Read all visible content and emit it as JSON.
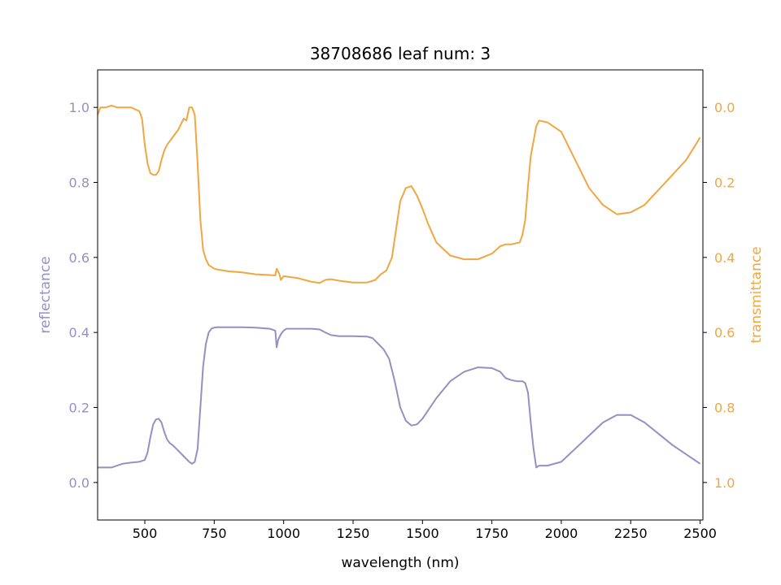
{
  "chart_data": {
    "type": "line",
    "title": "38708686 leaf num: 3",
    "xlabel": "wavelength (nm)",
    "ylabel_left": "reflectance",
    "ylabel_right": "transmittance",
    "xlim": [
      330,
      2510
    ],
    "ylim_left": [
      -0.1,
      1.1
    ],
    "ylim_right": [
      1.1,
      -0.1
    ],
    "x_ticks": [
      500,
      750,
      1000,
      1250,
      1500,
      1750,
      2000,
      2250,
      2500
    ],
    "y_ticks_left": [
      0.0,
      0.2,
      0.4,
      0.6,
      0.8,
      1.0
    ],
    "y_ticks_right": [
      0.0,
      0.2,
      0.4,
      0.6,
      0.8,
      1.0
    ],
    "grid": false,
    "colors": {
      "reflectance": "#9590c2",
      "transmittance": "#f0a742",
      "axis": "#000000"
    },
    "series": [
      {
        "name": "reflectance",
        "axis": "left",
        "x": [
          330,
          350,
          380,
          400,
          420,
          450,
          480,
          500,
          510,
          520,
          530,
          540,
          550,
          560,
          570,
          580,
          590,
          600,
          620,
          640,
          660,
          670,
          680,
          690,
          700,
          710,
          720,
          730,
          740,
          750,
          760,
          800,
          850,
          900,
          950,
          970,
          975,
          980,
          990,
          1000,
          1010,
          1030,
          1050,
          1100,
          1130,
          1150,
          1170,
          1200,
          1250,
          1300,
          1320,
          1340,
          1360,
          1380,
          1400,
          1420,
          1440,
          1460,
          1480,
          1500,
          1550,
          1600,
          1650,
          1700,
          1750,
          1780,
          1800,
          1820,
          1840,
          1860,
          1870,
          1880,
          1890,
          1900,
          1910,
          1920,
          1950,
          2000,
          2050,
          2100,
          2150,
          2200,
          2250,
          2300,
          2350,
          2400,
          2450,
          2500
        ],
        "y": [
          0.04,
          0.04,
          0.04,
          0.045,
          0.05,
          0.053,
          0.055,
          0.06,
          0.08,
          0.12,
          0.155,
          0.168,
          0.17,
          0.16,
          0.135,
          0.115,
          0.105,
          0.1,
          0.085,
          0.07,
          0.055,
          0.05,
          0.055,
          0.09,
          0.2,
          0.31,
          0.37,
          0.4,
          0.41,
          0.413,
          0.414,
          0.414,
          0.414,
          0.413,
          0.41,
          0.405,
          0.36,
          0.38,
          0.395,
          0.405,
          0.41,
          0.41,
          0.41,
          0.41,
          0.408,
          0.4,
          0.393,
          0.39,
          0.39,
          0.389,
          0.385,
          0.37,
          0.355,
          0.33,
          0.27,
          0.2,
          0.165,
          0.152,
          0.155,
          0.17,
          0.225,
          0.27,
          0.295,
          0.307,
          0.305,
          0.295,
          0.278,
          0.273,
          0.27,
          0.27,
          0.265,
          0.24,
          0.16,
          0.09,
          0.04,
          0.045,
          0.045,
          0.055,
          0.09,
          0.125,
          0.16,
          0.18,
          0.18,
          0.16,
          0.13,
          0.1,
          0.075,
          0.05
        ]
      },
      {
        "name": "transmittance",
        "axis": "right",
        "x": [
          330,
          340,
          360,
          380,
          400,
          420,
          450,
          480,
          490,
          500,
          510,
          520,
          530,
          540,
          550,
          560,
          570,
          580,
          600,
          620,
          640,
          650,
          660,
          670,
          680,
          690,
          700,
          710,
          720,
          730,
          740,
          750,
          760,
          800,
          850,
          900,
          950,
          970,
          975,
          985,
          990,
          1000,
          1050,
          1100,
          1130,
          1150,
          1170,
          1200,
          1250,
          1300,
          1330,
          1350,
          1370,
          1390,
          1400,
          1410,
          1420,
          1440,
          1460,
          1480,
          1500,
          1520,
          1550,
          1600,
          1650,
          1700,
          1750,
          1780,
          1800,
          1820,
          1850,
          1860,
          1870,
          1880,
          1890,
          1900,
          1910,
          1920,
          1950,
          2000,
          2050,
          2100,
          2150,
          2200,
          2250,
          2300,
          2350,
          2400,
          2450,
          2500
        ],
        "y": [
          0.02,
          0.0,
          0.0,
          -0.005,
          0.0,
          0.0,
          0.0,
          0.01,
          0.03,
          0.1,
          0.15,
          0.175,
          0.18,
          0.18,
          0.17,
          0.14,
          0.115,
          0.1,
          0.08,
          0.06,
          0.03,
          0.035,
          0.0,
          0.0,
          0.02,
          0.15,
          0.3,
          0.38,
          0.405,
          0.42,
          0.425,
          0.43,
          0.432,
          0.437,
          0.44,
          0.445,
          0.447,
          0.448,
          0.43,
          0.445,
          0.46,
          0.45,
          0.455,
          0.465,
          0.468,
          0.46,
          0.458,
          0.462,
          0.467,
          0.467,
          0.46,
          0.445,
          0.435,
          0.4,
          0.35,
          0.3,
          0.25,
          0.215,
          0.21,
          0.235,
          0.27,
          0.31,
          0.36,
          0.395,
          0.405,
          0.405,
          0.39,
          0.37,
          0.365,
          0.365,
          0.36,
          0.34,
          0.3,
          0.21,
          0.13,
          0.09,
          0.05,
          0.035,
          0.04,
          0.065,
          0.14,
          0.215,
          0.26,
          0.285,
          0.28,
          0.26,
          0.22,
          0.18,
          0.14,
          0.08
        ]
      }
    ]
  }
}
